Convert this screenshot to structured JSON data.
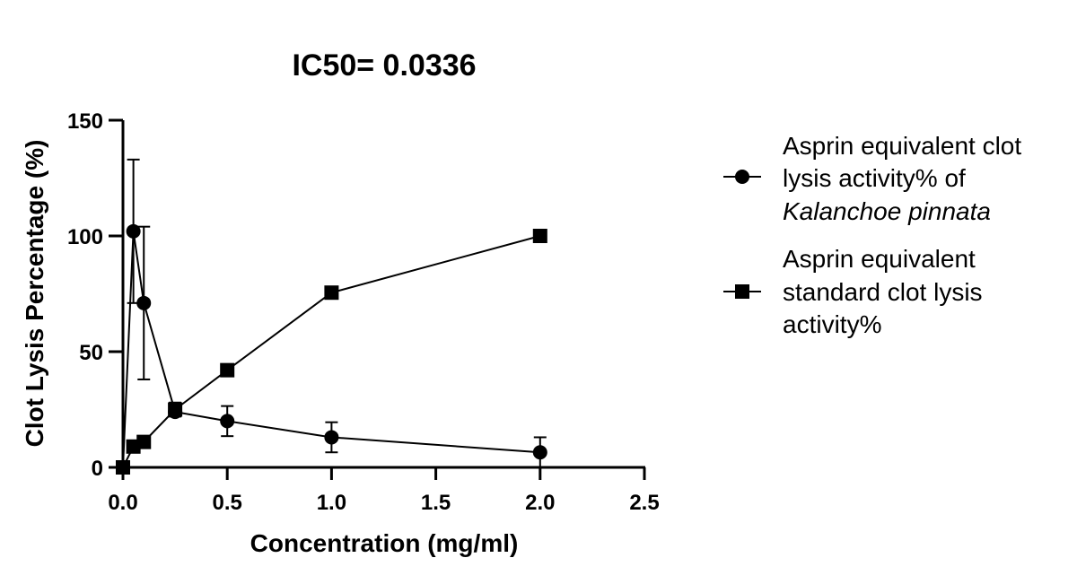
{
  "chart_data": {
    "type": "line",
    "title": "IC50= 0.0336",
    "xlabel": "Concentration (mg/ml)",
    "ylabel": "Clot Lysis Percentage (%)",
    "xlim": [
      0,
      2.5
    ],
    "ylim": [
      0,
      150
    ],
    "xticks": [
      0.0,
      0.5,
      1.0,
      1.5,
      2.0,
      2.5
    ],
    "xtick_labels": [
      "0.0",
      "0.5",
      "1.0",
      "1.5",
      "2.0",
      "2.5"
    ],
    "yticks": [
      0,
      50,
      100,
      150
    ],
    "ytick_labels": [
      "0",
      "50",
      "100",
      "150"
    ],
    "grid": false,
    "legend_position": "right",
    "series": [
      {
        "marker": "circle",
        "legend_lines": [
          "Asprin equivalent clot",
          "lysis activity% of",
          "Kalanchoe pinnata"
        ],
        "x": [
          0,
          0.05,
          0.1,
          0.25,
          0.5,
          1.0,
          2.0
        ],
        "y": [
          0,
          102,
          71,
          24,
          20,
          13,
          6.5
        ],
        "err": [
          0,
          31,
          33,
          2,
          6.5,
          6.5,
          6.5
        ]
      },
      {
        "marker": "square",
        "legend_lines": [
          "Asprin equivalent",
          "standard clot lysis",
          "activity%"
        ],
        "x": [
          0,
          0.05,
          0.1,
          0.25,
          0.5,
          1.0,
          2.0
        ],
        "y": [
          0,
          9,
          11,
          25,
          42,
          75.5,
          100
        ],
        "err": [
          0,
          0,
          0,
          3,
          0,
          0,
          0
        ]
      }
    ]
  }
}
